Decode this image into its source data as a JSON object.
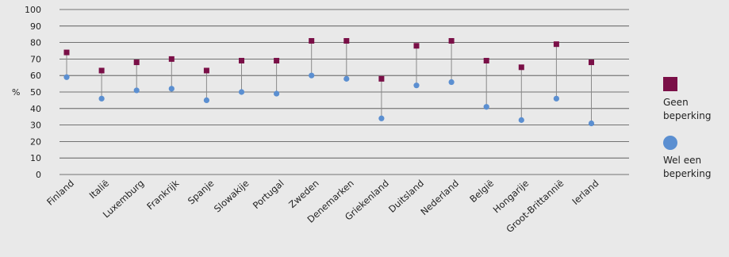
{
  "chart_data": {
    "type": "dot-range",
    "y_unit_label": "%",
    "ylim": [
      0,
      100
    ],
    "yticks": [
      0,
      10,
      20,
      30,
      40,
      50,
      60,
      70,
      80,
      90,
      100
    ],
    "grid": true,
    "legend_position": "right",
    "categories": [
      "Finland",
      "Italië",
      "Luxemburg",
      "Frankrijk",
      "Spanje",
      "Slowakije",
      "Portugal",
      "Zweden",
      "Denemarken",
      "Griekenland",
      "Duitsland",
      "Nederland",
      "België",
      "Hongarije",
      "Groot-Brittannië",
      "Ierland"
    ],
    "series": [
      {
        "name_lines": [
          "Geen",
          "beperking"
        ],
        "marker": "square",
        "color": "#7a0f47",
        "values": [
          74,
          63,
          68,
          70,
          63,
          69,
          69,
          81,
          81,
          58,
          78,
          81,
          69,
          65,
          79,
          68
        ]
      },
      {
        "name_lines": [
          "Wel een",
          "beperking"
        ],
        "marker": "circle",
        "color": "#5b8fd1",
        "values": [
          59,
          46,
          51,
          52,
          45,
          50,
          49,
          60,
          58,
          34,
          54,
          56,
          41,
          33,
          46,
          31
        ]
      }
    ]
  }
}
